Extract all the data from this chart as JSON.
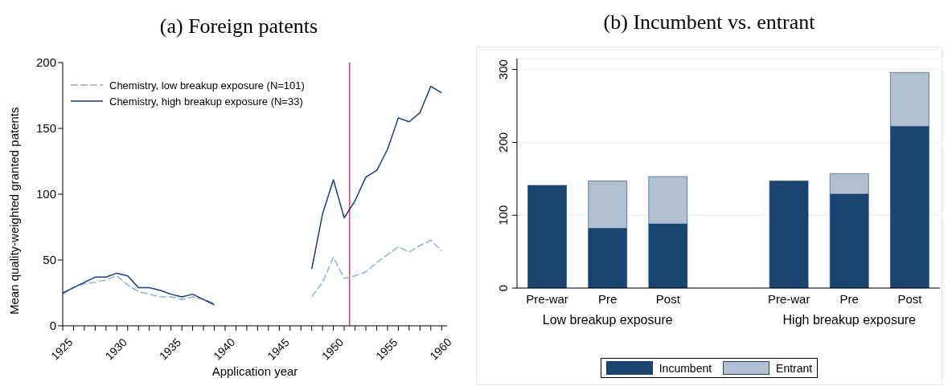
{
  "chart_data": [
    {
      "type": "line",
      "title": "(a) Foreign patents",
      "xlabel": "Application year",
      "ylabel": "Mean quality-weighted granted patents",
      "x": [
        1925,
        1926,
        1927,
        1928,
        1929,
        1930,
        1931,
        1932,
        1933,
        1934,
        1935,
        1936,
        1937,
        1938,
        1939,
        1940,
        1941,
        1942,
        1943,
        1944,
        1945,
        1946,
        1947,
        1948,
        1949,
        1950,
        1951,
        1952,
        1953,
        1954,
        1955,
        1956,
        1957,
        1958,
        1959,
        1960
      ],
      "series": [
        {
          "name": "Chemistry, low breakup exposure (N=101)",
          "color": "#8fb0d0",
          "line_style": "dashed",
          "values": [
            24,
            29,
            32,
            33,
            35,
            38,
            31,
            26,
            24,
            22,
            22,
            20,
            22,
            20,
            17,
            null,
            null,
            null,
            null,
            null,
            null,
            null,
            null,
            22,
            33,
            52,
            36,
            38,
            41,
            48,
            54,
            60,
            56,
            61,
            65,
            57
          ]
        },
        {
          "name": "Chemistry, high breakup exposure (N=33)",
          "color": "#1a3a8a",
          "line_style": "solid",
          "values": [
            25,
            29,
            33,
            37,
            37,
            40,
            38,
            29,
            29,
            27,
            24,
            22,
            24,
            20,
            16,
            null,
            null,
            null,
            null,
            null,
            null,
            null,
            null,
            43,
            85,
            111,
            82,
            95,
            113,
            118,
            134,
            158,
            155,
            162,
            182,
            177
          ]
        }
      ],
      "xlim": [
        1925,
        1960.5
      ],
      "xticks": [
        1925,
        {
          "value": 1926,
          "label": null
        },
        {
          "value": 1927,
          "label": null
        },
        {
          "value": 1928,
          "label": null
        },
        {
          "value": 1929,
          "label": null
        },
        1930,
        {
          "value": 1931,
          "label": null
        },
        {
          "value": 1932,
          "label": null
        },
        {
          "value": 1933,
          "label": null
        },
        {
          "value": 1934,
          "label": null
        },
        1935,
        {
          "value": 1936,
          "label": null
        },
        {
          "value": 1937,
          "label": null
        },
        {
          "value": 1938,
          "label": null
        },
        {
          "value": 1939,
          "label": null
        },
        1940,
        {
          "value": 1941,
          "label": null
        },
        {
          "value": 1942,
          "label": null
        },
        {
          "value": 1943,
          "label": null
        },
        {
          "value": 1944,
          "label": null
        },
        1945,
        {
          "value": 1946,
          "label": null
        },
        {
          "value": 1947,
          "label": null
        },
        {
          "value": 1948,
          "label": null
        },
        {
          "value": 1949,
          "label": null
        },
        1950,
        {
          "value": 1951,
          "label": null
        },
        {
          "value": 1952,
          "label": null
        },
        {
          "value": 1953,
          "label": null
        },
        {
          "value": 1954,
          "label": null
        },
        1955,
        {
          "value": 1956,
          "label": null
        },
        {
          "value": 1957,
          "label": null
        },
        {
          "value": 1958,
          "label": null
        },
        {
          "value": 1959,
          "label": null
        },
        1960
      ],
      "ylim": [
        0,
        200
      ],
      "yticks": [
        0,
        50,
        100,
        150,
        200
      ],
      "ref_lines": [
        {
          "axis": "x",
          "value": 1951.5,
          "color": "#d0103a"
        }
      ],
      "marker": "none",
      "grid": false,
      "legend": "top left"
    },
    {
      "type": "bar",
      "title": "(b) Incumbent vs. entrant",
      "stacked": true,
      "categories": [
        "Pre-war",
        "Pre",
        "Post",
        null,
        "Pre-war",
        "Pre",
        "Post"
      ],
      "series": [
        {
          "name": "Incumbent",
          "color": "#1a4570",
          "values": [
            141,
            82,
            88,
            null,
            147,
            129,
            222
          ]
        },
        {
          "name": "Entrant",
          "color": "#b0c0d0",
          "values": [
            null,
            65,
            65,
            null,
            null,
            28,
            74
          ]
        }
      ],
      "annotations": [
        "Low breakup exposure",
        "High breakup exposure"
      ],
      "ylim": [
        0,
        315
      ],
      "yticks": [
        0,
        100,
        200,
        300
      ],
      "grid": "y",
      "legend": "bottom"
    }
  ]
}
